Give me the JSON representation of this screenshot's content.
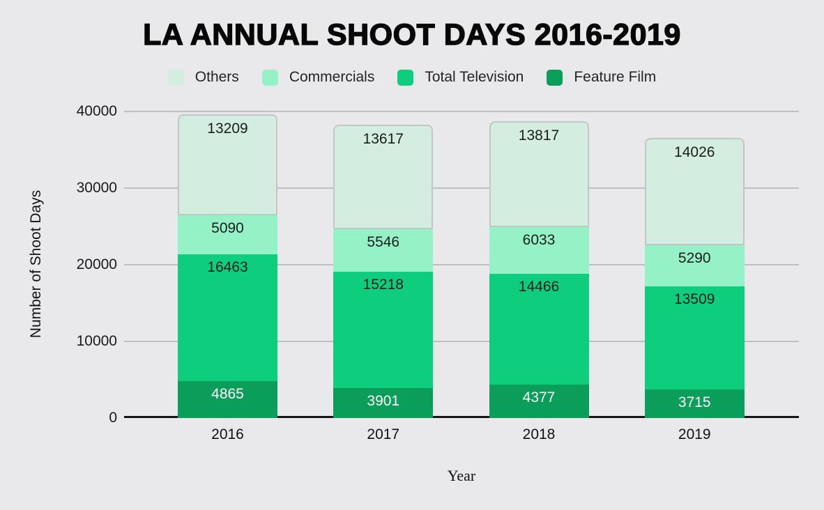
{
  "title": "LA ANNUAL SHOOT DAYS 2016-2019",
  "colors": {
    "background": "#e9e9eb",
    "gridline": "#bdbfc1",
    "axis_line": "#141414",
    "others_border": "#c3c5c6"
  },
  "legend": {
    "items": [
      {
        "label": "Others",
        "color": "#d3eee1"
      },
      {
        "label": "Commercials",
        "color": "#95f1c6"
      },
      {
        "label": "Total Television",
        "color": "#0ecd7d"
      },
      {
        "label": "Feature Film",
        "color": "#0b9e5a"
      }
    ]
  },
  "chart_data": {
    "type": "bar",
    "stacked": true,
    "title": "LA ANNUAL SHOOT DAYS 2016-2019",
    "xlabel": "Year",
    "ylabel": "Number of Shoot Days",
    "categories": [
      "2016",
      "2017",
      "2018",
      "2019"
    ],
    "series": [
      {
        "name": "Feature Film",
        "color": "#0b9e5a",
        "label_color": "#ffffff",
        "values": [
          4865,
          3901,
          4377,
          3715
        ]
      },
      {
        "name": "Total Television",
        "color": "#0ecd7d",
        "label_color": "#1c1c1c",
        "values": [
          16463,
          15218,
          14466,
          13509
        ]
      },
      {
        "name": "Commercials",
        "color": "#95f1c6",
        "label_color": "#1c1c1c",
        "values": [
          5090,
          5546,
          6033,
          5290
        ]
      },
      {
        "name": "Others",
        "color": "#d3eee1",
        "label_color": "#1c1c1c",
        "values": [
          13209,
          13617,
          13817,
          14026
        ],
        "outlined": true
      }
    ],
    "ylim": [
      0,
      40000
    ],
    "yticks": [
      0,
      10000,
      20000,
      30000,
      40000
    ],
    "grid": true,
    "legend_position": "top",
    "legend_order": [
      "Others",
      "Commercials",
      "Total Television",
      "Feature Film"
    ]
  }
}
